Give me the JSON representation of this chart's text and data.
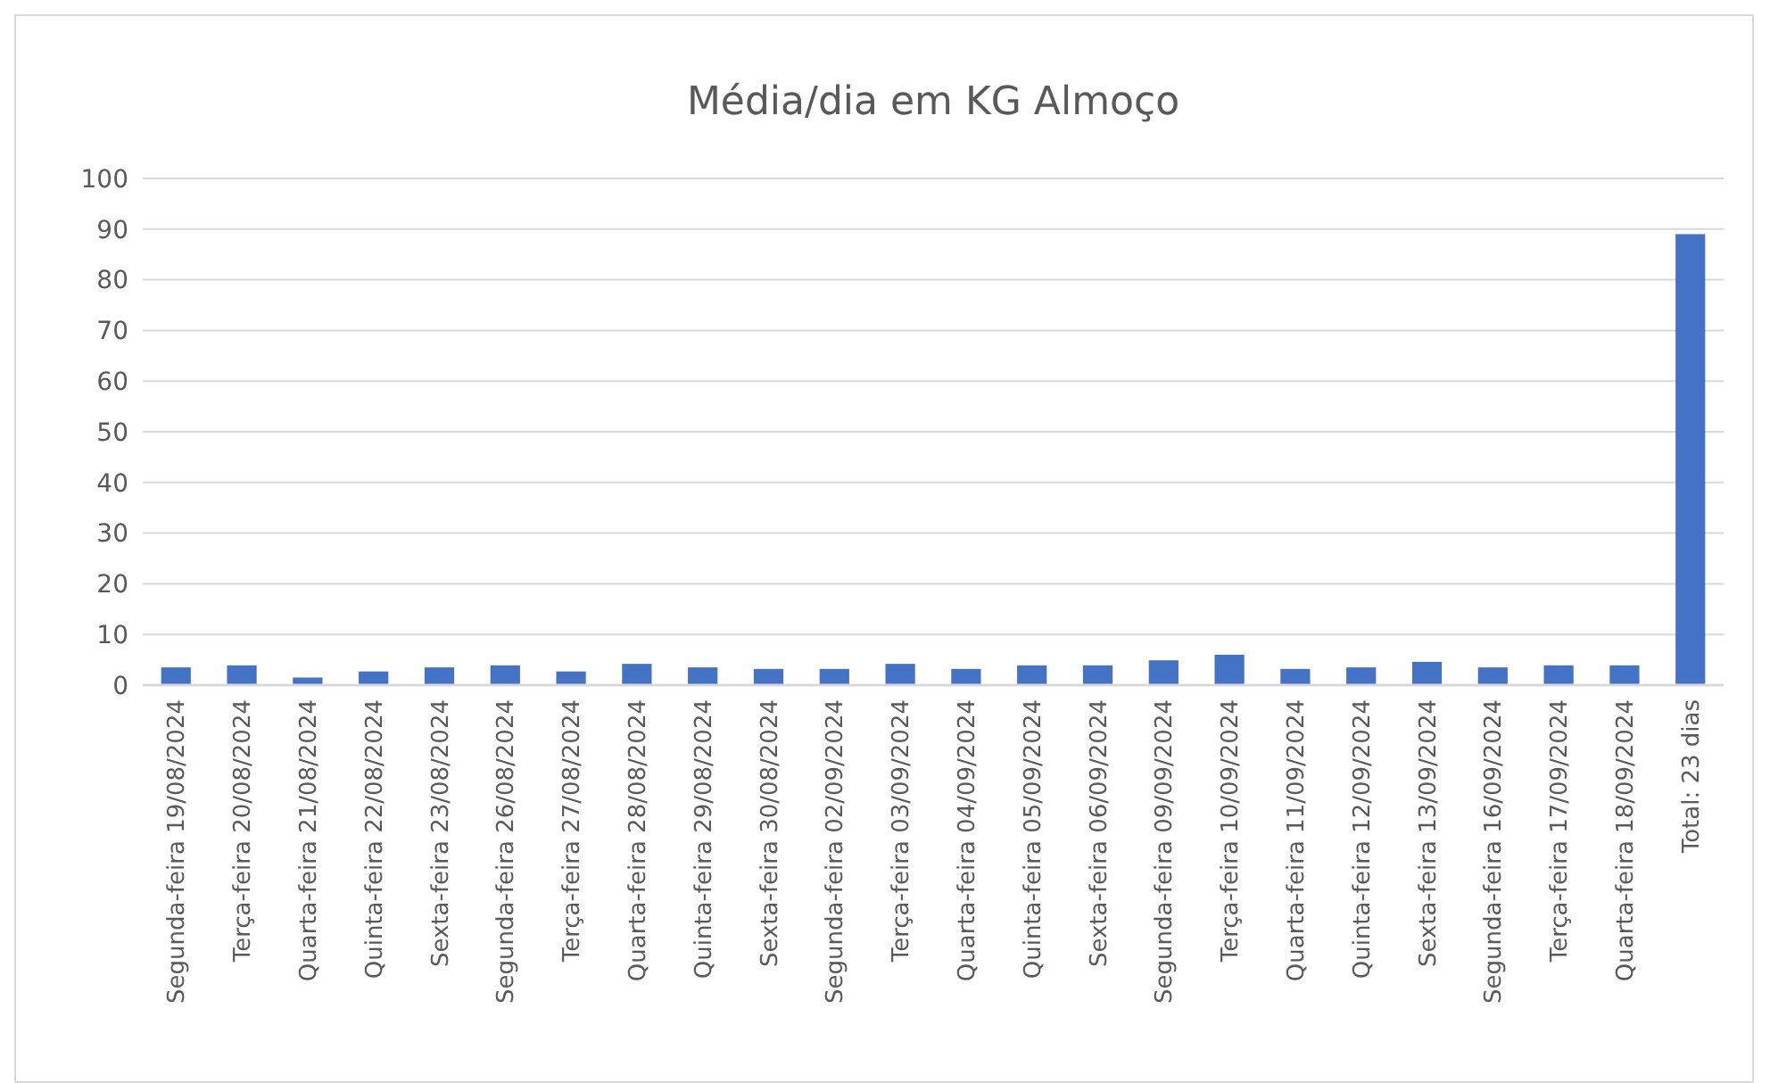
{
  "chart_data": {
    "type": "bar",
    "title": "Média/dia em KG Almoço",
    "categories": [
      "Segunda-feira 19/08/2024",
      "Terça-feira 20/08/2024",
      "Quarta-feira 21/08/2024",
      "Quinta-feira 22/08/2024",
      "Sexta-feira 23/08/2024",
      "Segunda-feira 26/08/2024",
      "Terça-feira 27/08/2024",
      "Quarta-feira 28/08/2024",
      "Quinta-feira 29/08/2024",
      "Sexta-feira 30/08/2024",
      "Segunda-feira 02/09/2024",
      "Terça-feira 03/09/2024",
      "Quarta-feira 04/09/2024",
      "Quinta-feira 05/09/2024",
      "Sexta-feira 06/09/2024",
      "Segunda-feira 09/09/2024",
      "Terça-feira 10/09/2024",
      "Quarta-feira 11/09/2024",
      "Quinta-feira 12/09/2024",
      "Sexta-feira 13/09/2024",
      "Segunda-feira 16/09/2024",
      "Terça-feira 17/09/2024",
      "Quarta-feira 18/09/2024",
      "Total: 23 dias"
    ],
    "values": [
      3.5,
      3.9,
      1.5,
      2.7,
      3.5,
      3.9,
      2.7,
      4.2,
      3.5,
      3.2,
      3.2,
      4.2,
      3.2,
      3.9,
      3.9,
      4.9,
      6.0,
      3.2,
      3.5,
      4.6,
      3.5,
      3.9,
      3.9,
      89
    ],
    "color": "#4472c4",
    "ylim": [
      0,
      100
    ],
    "yticks": [
      0,
      10,
      20,
      30,
      40,
      50,
      60,
      70,
      80,
      90,
      100
    ],
    "grid": "y"
  }
}
